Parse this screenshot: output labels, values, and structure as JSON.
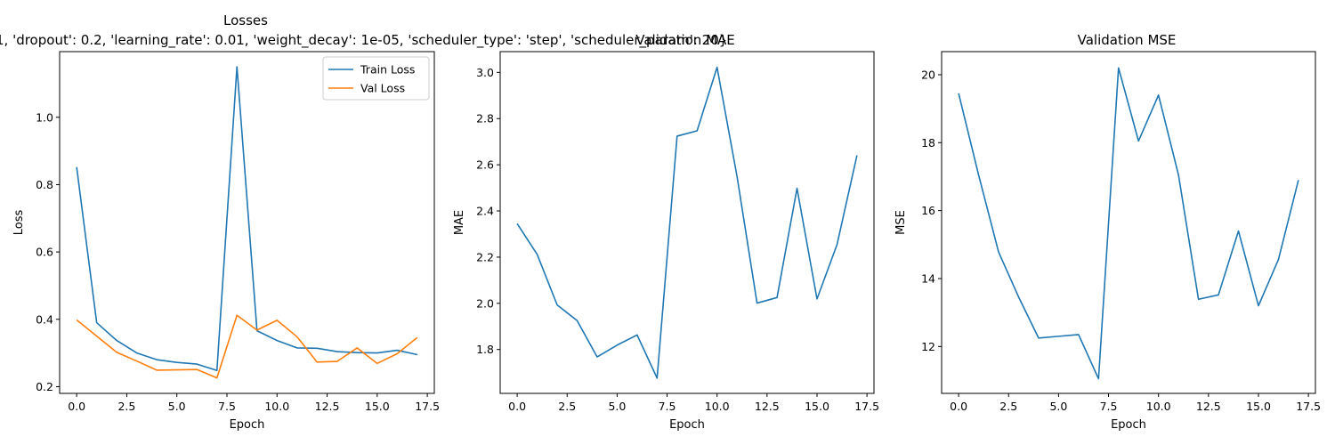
{
  "figure": {
    "suptitle_top": "Losses",
    "suptitle_params": "1, 'dropout': 0.2, 'learning_rate': 0.01, 'weight_decay': 1e-05, 'scheduler_type': 'step', 'scheduler_param': 20}"
  },
  "chart_data": [
    {
      "type": "line",
      "title": "",
      "xlabel": "Epoch",
      "ylabel": "Loss",
      "xlim": [
        -0.85,
        17.85
      ],
      "ylim": [
        0.18,
        1.195
      ],
      "xticks": [
        0.0,
        2.5,
        5.0,
        7.5,
        10.0,
        12.5,
        15.0,
        17.5
      ],
      "xtick_labels": [
        "0.0",
        "2.5",
        "5.0",
        "7.5",
        "10.0",
        "12.5",
        "15.0",
        "17.5"
      ],
      "yticks": [
        0.2,
        0.4,
        0.6,
        0.8,
        1.0
      ],
      "ytick_labels": [
        "0.2",
        "0.4",
        "0.6",
        "0.8",
        "1.0"
      ],
      "legend": "top-right",
      "x": [
        0,
        1,
        2,
        3,
        4,
        5,
        6,
        7,
        8,
        9,
        10,
        11,
        12,
        13,
        14,
        15,
        16,
        17
      ],
      "series": [
        {
          "name": "Train Loss",
          "color": "#1f77b4",
          "values": [
            0.852,
            0.39,
            0.337,
            0.3,
            0.28,
            0.272,
            0.267,
            0.248,
            1.15,
            0.366,
            0.337,
            0.315,
            0.314,
            0.304,
            0.301,
            0.3,
            0.308,
            0.295
          ]
        },
        {
          "name": "Val Loss",
          "color": "#ff7f0e",
          "values": [
            0.398,
            0.35,
            0.302,
            0.276,
            0.249,
            0.25,
            0.251,
            0.226,
            0.412,
            0.368,
            0.397,
            0.348,
            0.273,
            0.275,
            0.315,
            0.269,
            0.298,
            0.346
          ]
        }
      ]
    },
    {
      "type": "line",
      "title": "Validation MAE",
      "xlabel": "Epoch",
      "ylabel": "MAE",
      "xlim": [
        -0.85,
        17.85
      ],
      "ylim": [
        1.61,
        3.09
      ],
      "xticks": [
        0.0,
        2.5,
        5.0,
        7.5,
        10.0,
        12.5,
        15.0,
        17.5
      ],
      "xtick_labels": [
        "0.0",
        "2.5",
        "5.0",
        "7.5",
        "10.0",
        "12.5",
        "15.0",
        "17.5"
      ],
      "yticks": [
        1.8,
        2.0,
        2.2,
        2.4,
        2.6,
        2.8,
        3.0
      ],
      "ytick_labels": [
        "1.8",
        "2.0",
        "2.2",
        "2.4",
        "2.6",
        "2.8",
        "3.0"
      ],
      "x": [
        0,
        1,
        2,
        3,
        4,
        5,
        6,
        7,
        8,
        9,
        10,
        11,
        12,
        13,
        14,
        15,
        16,
        17
      ],
      "series": [
        {
          "color": "#1f77b4",
          "values": [
            2.345,
            2.212,
            1.993,
            1.925,
            1.768,
            1.819,
            1.863,
            1.676,
            2.724,
            2.747,
            3.022,
            2.549,
            2.001,
            2.025,
            2.498,
            2.019,
            2.254,
            2.641
          ]
        }
      ]
    },
    {
      "type": "line",
      "title": "Validation MSE",
      "xlabel": "Epoch",
      "ylabel": "MSE",
      "xlim": [
        -0.85,
        17.85
      ],
      "ylim": [
        10.62,
        20.68
      ],
      "xticks": [
        0.0,
        2.5,
        5.0,
        7.5,
        10.0,
        12.5,
        15.0,
        17.5
      ],
      "xtick_labels": [
        "0.0",
        "2.5",
        "5.0",
        "7.5",
        "10.0",
        "12.5",
        "15.0",
        "17.5"
      ],
      "yticks": [
        12,
        14,
        16,
        18,
        20
      ],
      "ytick_labels": [
        "12",
        "14",
        "16",
        "18",
        "20"
      ],
      "x": [
        0,
        1,
        2,
        3,
        4,
        5,
        6,
        7,
        8,
        9,
        10,
        11,
        12,
        13,
        14,
        15,
        16,
        17
      ],
      "series": [
        {
          "color": "#1f77b4",
          "values": [
            19.45,
            17.05,
            14.78,
            13.46,
            12.25,
            12.3,
            12.35,
            11.05,
            20.2,
            18.05,
            19.4,
            17.05,
            13.39,
            13.52,
            15.4,
            13.2,
            14.56,
            16.9
          ]
        }
      ]
    }
  ]
}
